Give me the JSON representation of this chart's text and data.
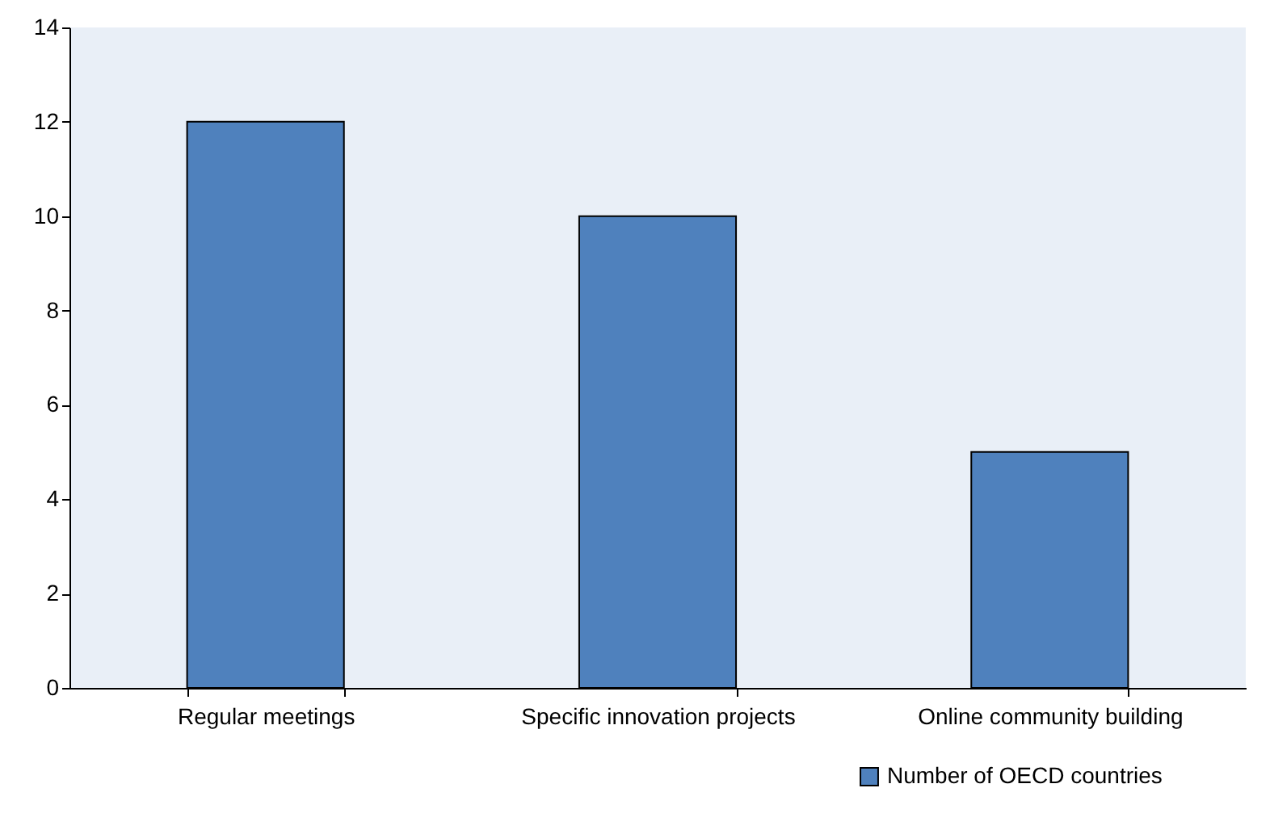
{
  "chart_data": {
    "type": "bar",
    "categories": [
      "Regular meetings",
      "Specific innovation projects",
      "Online community building"
    ],
    "series": [
      {
        "name": "Number of OECD countries",
        "color": "#4f81bd",
        "values": [
          12,
          10,
          5
        ]
      }
    ],
    "ylim": [
      0,
      14
    ],
    "yticks": [
      0,
      2,
      4,
      6,
      8,
      10,
      12,
      14
    ],
    "grid": false,
    "legend": "bottom right"
  }
}
